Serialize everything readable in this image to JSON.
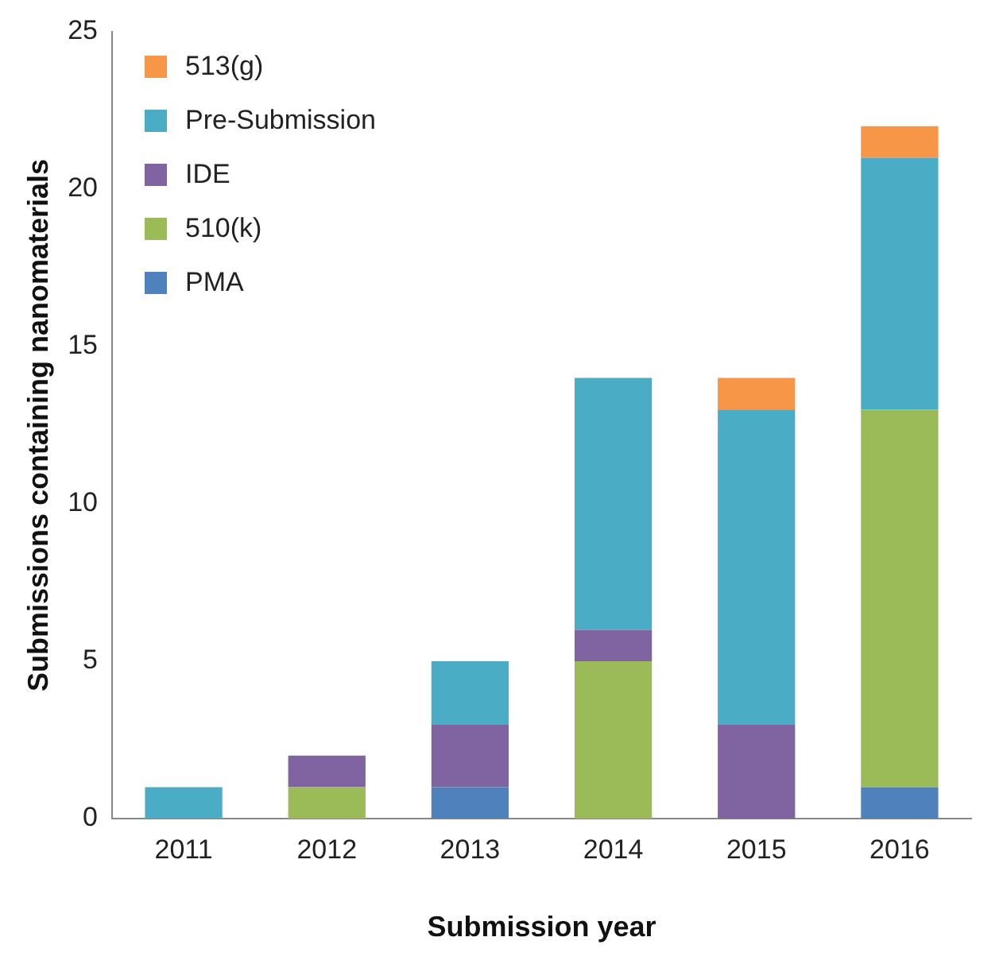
{
  "chart_data": {
    "type": "bar",
    "stacked": true,
    "xlabel": "Submission year",
    "ylabel": "Submissions containing nanomaterials",
    "categories": [
      "2011",
      "2012",
      "2013",
      "2014",
      "2015",
      "2016"
    ],
    "series": [
      {
        "name": "PMA",
        "color": "#4f81bd",
        "values": [
          0,
          0,
          1,
          0,
          0,
          1
        ]
      },
      {
        "name": "510(k)",
        "color": "#9bbb59",
        "values": [
          0,
          1,
          0,
          5,
          0,
          12
        ]
      },
      {
        "name": "IDE",
        "color": "#8064a2",
        "values": [
          0,
          1,
          2,
          1,
          3,
          0
        ]
      },
      {
        "name": "Pre-Submission",
        "color": "#4bacc6",
        "values": [
          1,
          0,
          2,
          8,
          10,
          8
        ]
      },
      {
        "name": "513(g)",
        "color": "#f79646",
        "values": [
          0,
          0,
          0,
          0,
          1,
          1
        ]
      }
    ],
    "ylim": [
      0,
      25
    ],
    "yticks": [
      0,
      5,
      10,
      15,
      20,
      25
    ],
    "grid": false,
    "legend": "top left"
  }
}
